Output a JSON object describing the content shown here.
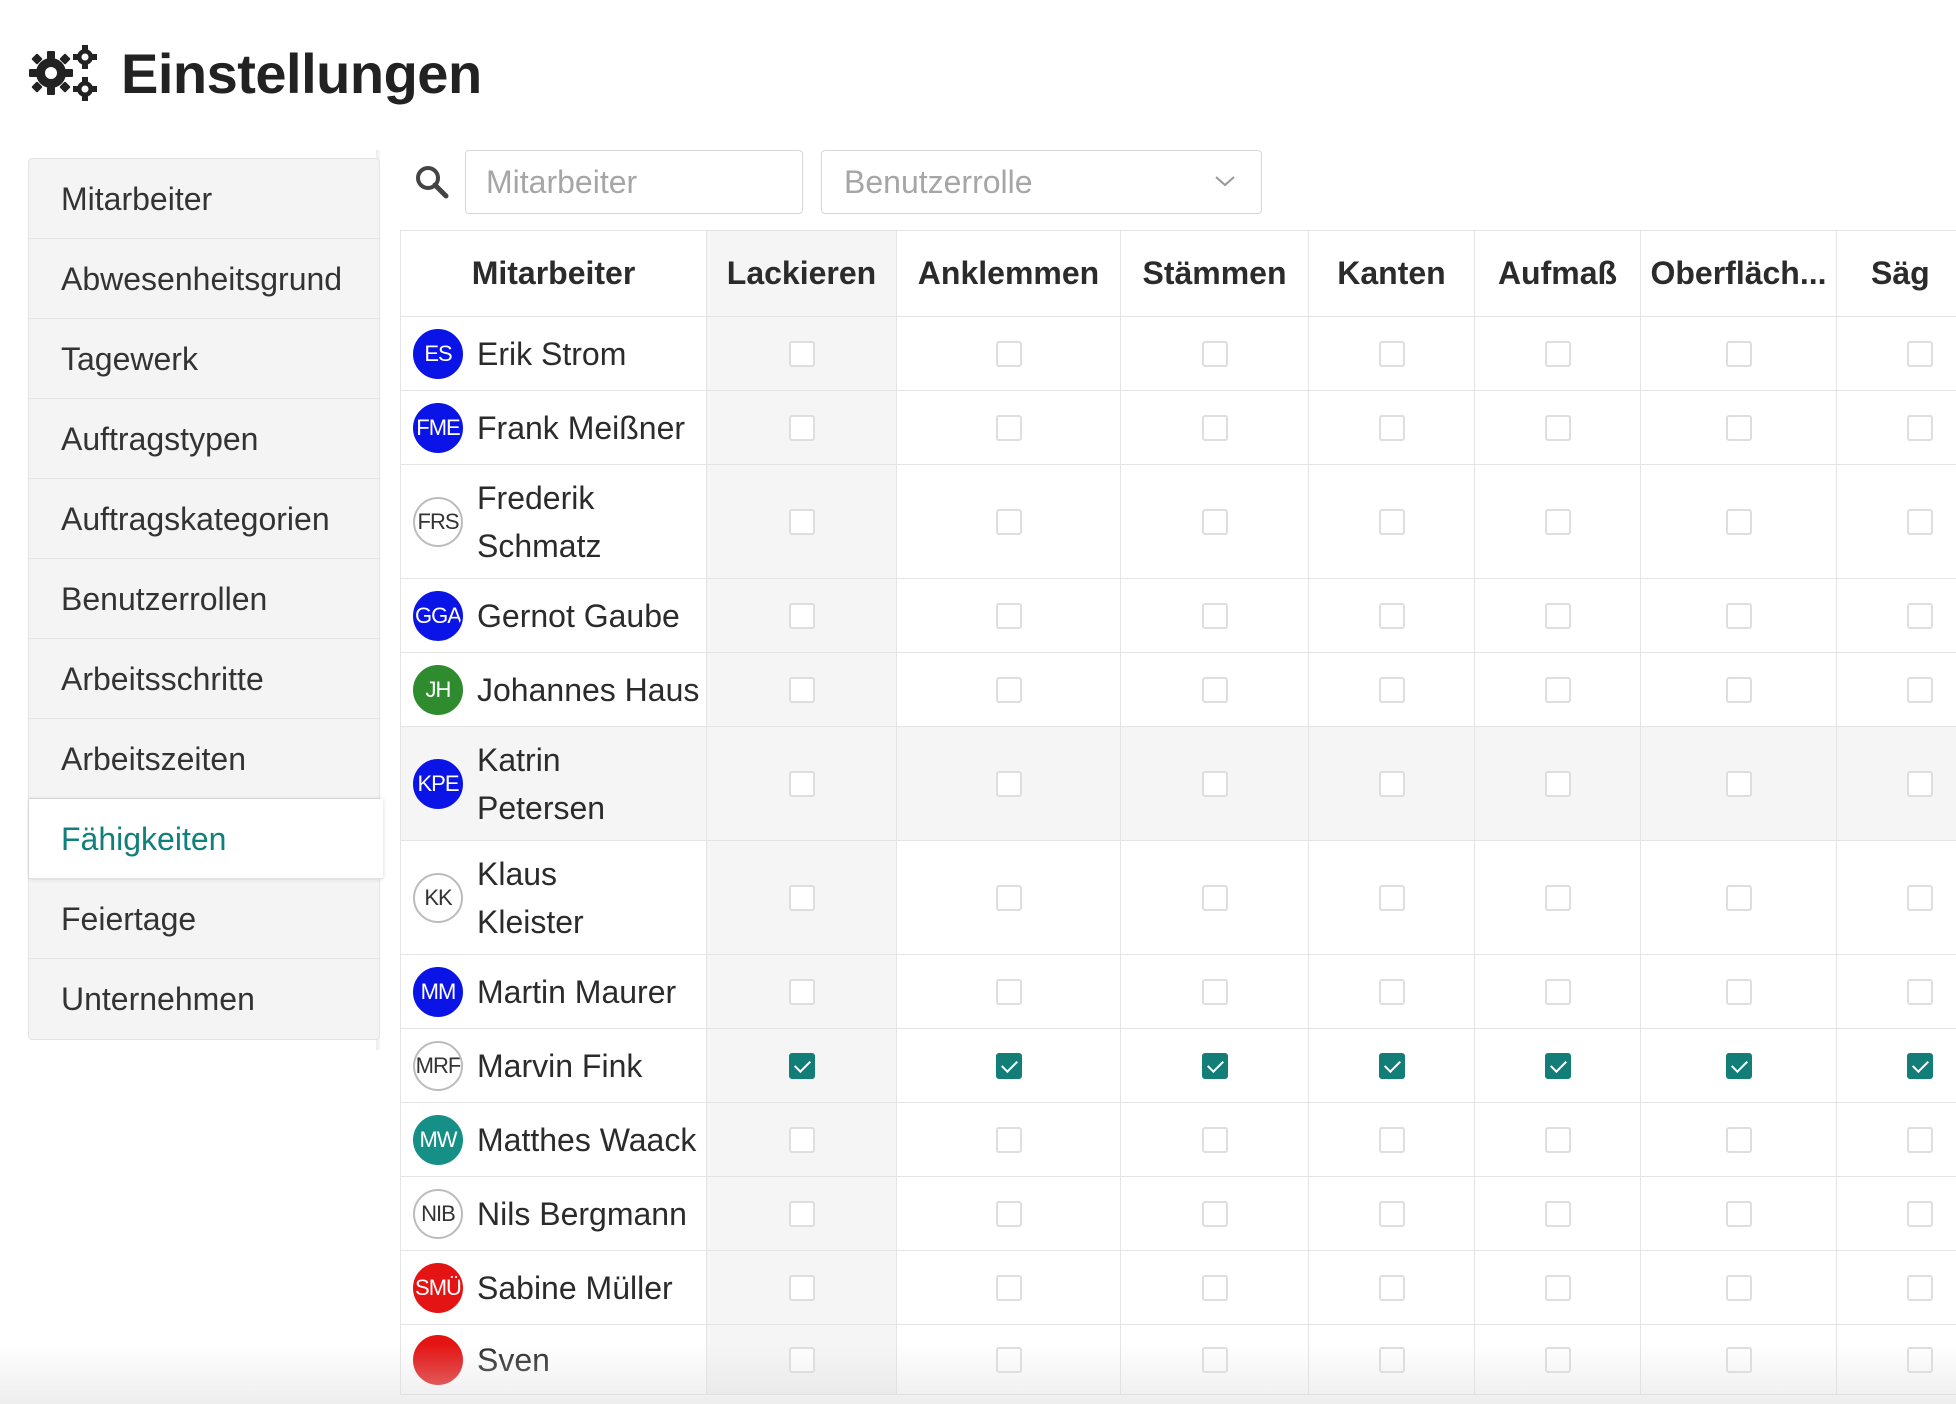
{
  "page": {
    "title": "Einstellungen",
    "title_icon": "gears-icon"
  },
  "sidebar": {
    "items": [
      {
        "label": "Mitarbeiter",
        "active": false
      },
      {
        "label": "Abwesenheitsgrund",
        "active": false
      },
      {
        "label": "Tagewerk",
        "active": false
      },
      {
        "label": "Auftragstypen",
        "active": false
      },
      {
        "label": "Auftragskategorien",
        "active": false
      },
      {
        "label": "Benutzerrollen",
        "active": false
      },
      {
        "label": "Arbeitsschritte",
        "active": false
      },
      {
        "label": "Arbeitszeiten",
        "active": false
      },
      {
        "label": "Fähigkeiten",
        "active": true
      },
      {
        "label": "Feiertage",
        "active": false
      },
      {
        "label": "Unternehmen",
        "active": false
      }
    ]
  },
  "filters": {
    "search_icon": "search-icon",
    "employee_placeholder": "Mitarbeiter",
    "role_placeholder": "Benutzerrolle"
  },
  "colors": {
    "accent": "#137d78",
    "avatar_blue": "#0a14e6",
    "avatar_green": "#2e8b2e",
    "avatar_teal": "#168f86",
    "avatar_red": "#e41414"
  },
  "table": {
    "columns": [
      "Mitarbeiter",
      "Lackieren",
      "Anklemmen",
      "Stämmen",
      "Kanten",
      "Aufmaß",
      "Oberfläch...",
      "Säg"
    ],
    "rows": [
      {
        "initials": "ES",
        "name": "Erik Strom",
        "avatar_color": "#0a14e6",
        "avatar_text": "#ffffff",
        "checked": [
          false,
          false,
          false,
          false,
          false,
          false,
          false
        ]
      },
      {
        "initials": "FME",
        "name": "Frank Meißner",
        "avatar_color": "#0a14e6",
        "avatar_text": "#ffffff",
        "checked": [
          false,
          false,
          false,
          false,
          false,
          false,
          false
        ]
      },
      {
        "initials": "FRS",
        "name": "Frederik Schmatz",
        "avatar_color": "#ffffff",
        "avatar_text": "#333333",
        "checked": [
          false,
          false,
          false,
          false,
          false,
          false,
          false
        ]
      },
      {
        "initials": "GGA",
        "name": "Gernot Gaube",
        "avatar_color": "#0a14e6",
        "avatar_text": "#ffffff",
        "checked": [
          false,
          false,
          false,
          false,
          false,
          false,
          false
        ]
      },
      {
        "initials": "JH",
        "name": "Johannes Haus",
        "avatar_color": "#2e8b2e",
        "avatar_text": "#ffffff",
        "checked": [
          false,
          false,
          false,
          false,
          false,
          false,
          false
        ]
      },
      {
        "initials": "KPE",
        "name": "Katrin Petersen",
        "avatar_color": "#0a14e6",
        "avatar_text": "#ffffff",
        "checked": [
          false,
          false,
          false,
          false,
          false,
          false,
          false
        ],
        "highlight": true
      },
      {
        "initials": "KK",
        "name": "Klaus Kleister",
        "avatar_color": "#ffffff",
        "avatar_text": "#333333",
        "checked": [
          false,
          false,
          false,
          false,
          false,
          false,
          false
        ]
      },
      {
        "initials": "MM",
        "name": "Martin Maurer",
        "avatar_color": "#0a14e6",
        "avatar_text": "#ffffff",
        "checked": [
          false,
          false,
          false,
          false,
          false,
          false,
          false
        ]
      },
      {
        "initials": "MRF",
        "name": "Marvin Fink",
        "avatar_color": "#ffffff",
        "avatar_text": "#333333",
        "checked": [
          true,
          true,
          true,
          true,
          true,
          true,
          true
        ]
      },
      {
        "initials": "MW",
        "name": "Matthes Waack",
        "avatar_color": "#168f86",
        "avatar_text": "#ffffff",
        "checked": [
          false,
          false,
          false,
          false,
          false,
          false,
          false
        ]
      },
      {
        "initials": "NIB",
        "name": "Nils Bergmann",
        "avatar_color": "#ffffff",
        "avatar_text": "#333333",
        "checked": [
          false,
          false,
          false,
          false,
          false,
          false,
          false
        ]
      },
      {
        "initials": "SMÜ",
        "name": "Sabine Müller",
        "avatar_color": "#e41414",
        "avatar_text": "#ffffff",
        "checked": [
          false,
          false,
          false,
          false,
          false,
          false,
          false
        ]
      },
      {
        "initials": "",
        "name": "Sven",
        "avatar_color": "#e41414",
        "avatar_text": "#ffffff",
        "checked": [
          false,
          false,
          false,
          false,
          false,
          false,
          false
        ]
      }
    ]
  }
}
